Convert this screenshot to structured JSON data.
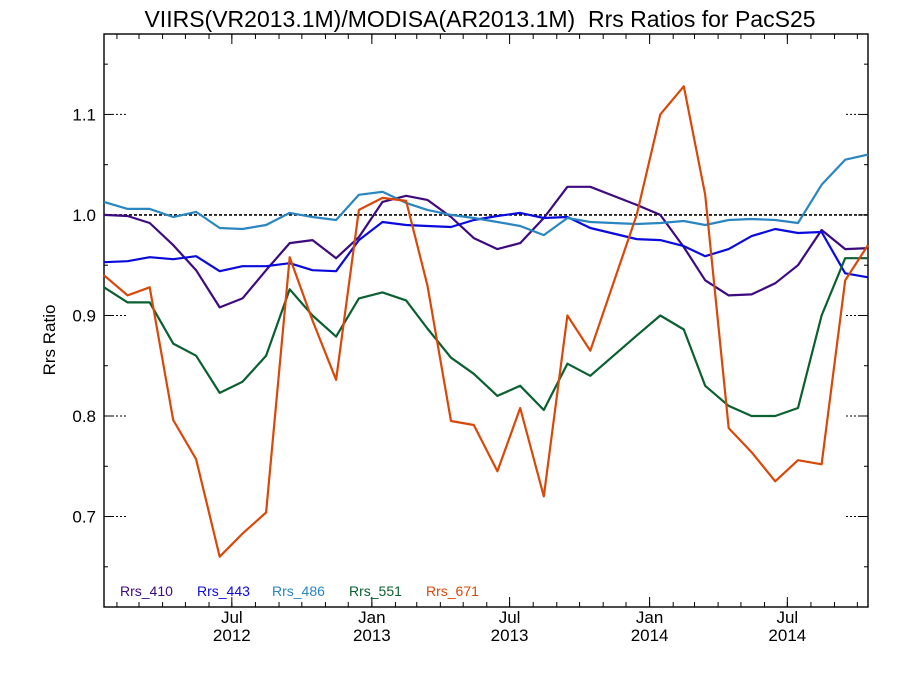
{
  "chart_data": {
    "type": "line",
    "title": "VIIRS(VR2013.1M)/MODISA(AR2013.1M)  Rrs Ratios for PacS25",
    "xlabel": "",
    "ylabel": "Rrs Ratio",
    "ylim": [
      0.61,
      1.18
    ],
    "x_ticks": [
      {
        "month": "Jul",
        "year": "2012"
      },
      {
        "month": "Jan",
        "year": "2013"
      },
      {
        "month": "Jul",
        "year": "2013"
      },
      {
        "month": "Jan",
        "year": "2014"
      },
      {
        "month": "Jul",
        "year": "2014"
      }
    ],
    "y_ticks": [
      "0.7",
      "0.8",
      "0.9",
      "1.0",
      "1.1"
    ],
    "reference_line": 1.0,
    "x": [
      "2012-01",
      "2012-02",
      "2012-03",
      "2012-04",
      "2012-05",
      "2012-06",
      "2012-07",
      "2012-08",
      "2012-09",
      "2012-10",
      "2012-11",
      "2012-12",
      "2013-01",
      "2013-02",
      "2013-03",
      "2013-04",
      "2013-05",
      "2013-06",
      "2013-07",
      "2013-08",
      "2013-09",
      "2013-10",
      "2013-12",
      "2014-01",
      "2014-02",
      "2014-03",
      "2014-04",
      "2014-05",
      "2014-06",
      "2014-07",
      "2014-08",
      "2014-09",
      "2014-10"
    ],
    "series": [
      {
        "name": "Rrs_410",
        "color": "#3d0a80",
        "values": [
          1.0,
          0.999,
          0.992,
          0.97,
          0.945,
          0.908,
          0.917,
          0.945,
          0.972,
          0.975,
          0.957,
          0.978,
          1.013,
          1.019,
          1.015,
          0.998,
          0.977,
          0.966,
          0.972,
          0.997,
          1.028,
          1.028,
          1.01,
          1.0,
          0.968,
          0.935,
          0.92,
          0.921,
          0.932,
          0.95,
          0.985,
          0.966,
          0.967
        ]
      },
      {
        "name": "Rrs_443",
        "color": "#0a0adc",
        "values": [
          0.953,
          0.954,
          0.958,
          0.956,
          0.959,
          0.944,
          0.949,
          0.949,
          0.952,
          0.945,
          0.944,
          0.975,
          0.993,
          0.99,
          0.989,
          0.988,
          0.995,
          0.999,
          1.002,
          0.997,
          0.998,
          0.987,
          0.976,
          0.975,
          0.969,
          0.959,
          0.966,
          0.979,
          0.986,
          0.982,
          0.983,
          0.942,
          0.938
        ]
      },
      {
        "name": "Rrs_486",
        "color": "#2a86c0",
        "values": [
          1.013,
          1.006,
          1.006,
          0.998,
          1.003,
          0.987,
          0.986,
          0.99,
          1.002,
          0.998,
          0.995,
          1.02,
          1.023,
          1.012,
          1.005,
          1.0,
          0.997,
          0.993,
          0.989,
          0.98,
          0.997,
          0.993,
          0.991,
          0.992,
          0.994,
          0.99,
          0.995,
          0.996,
          0.995,
          0.992,
          1.03,
          1.055,
          1.06
        ]
      },
      {
        "name": "Rrs_551",
        "color": "#0a6030",
        "values": [
          0.928,
          0.913,
          0.913,
          0.872,
          0.86,
          0.823,
          0.834,
          0.86,
          0.926,
          0.9,
          0.879,
          0.917,
          0.923,
          0.915,
          0.887,
          0.858,
          0.842,
          0.82,
          0.83,
          0.806,
          0.852,
          0.84,
          0.88,
          0.9,
          0.886,
          0.83,
          0.81,
          0.8,
          0.8,
          0.808,
          0.9,
          0.957,
          0.957
        ]
      },
      {
        "name": "Rrs_671",
        "color": "#d84808",
        "values": [
          0.94,
          0.92,
          0.928,
          0.796,
          0.757,
          0.66,
          0.683,
          0.704,
          0.958,
          0.895,
          0.836,
          1.005,
          1.017,
          1.014,
          0.93,
          0.795,
          0.791,
          0.745,
          0.808,
          0.72,
          0.9,
          0.865,
          1.0,
          1.1,
          1.128,
          1.02,
          0.788,
          0.764,
          0.735,
          0.756,
          0.752,
          0.935,
          0.97
        ]
      }
    ]
  }
}
